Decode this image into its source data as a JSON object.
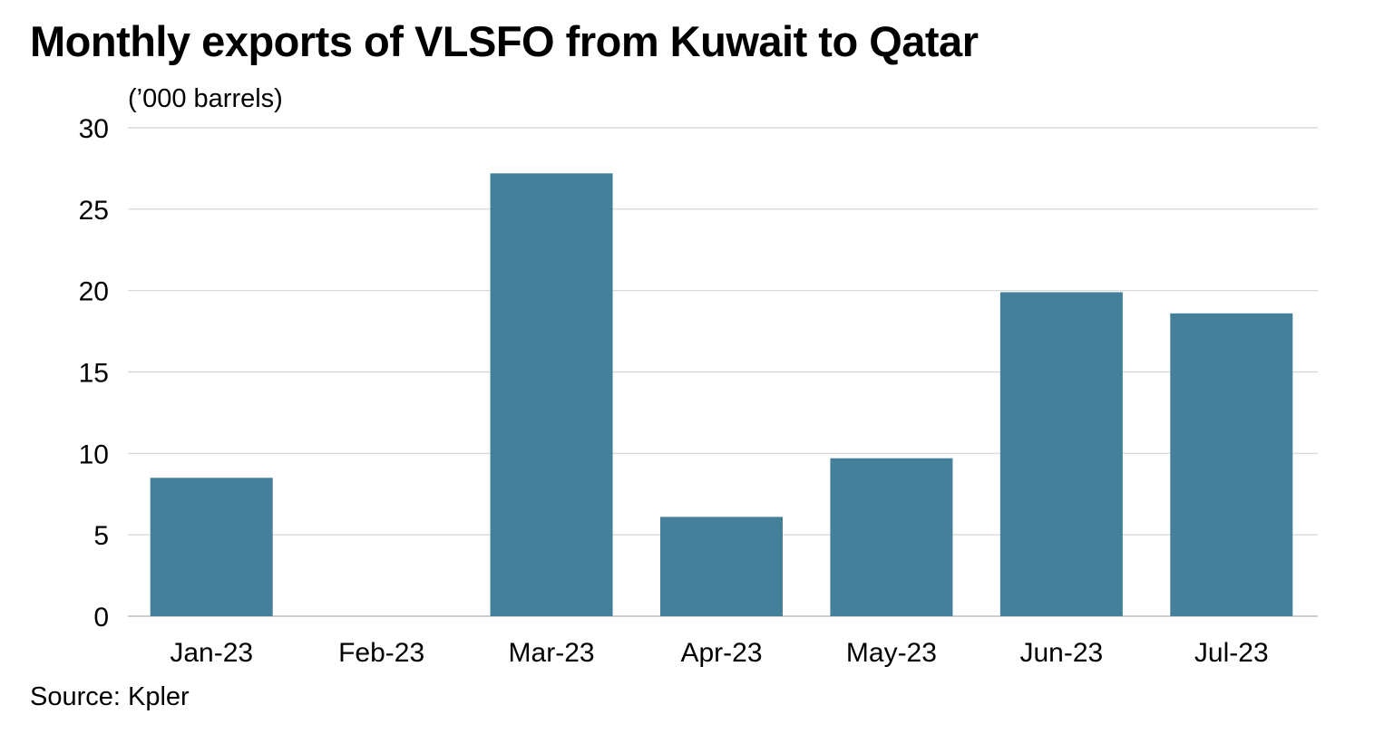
{
  "chart_data": {
    "type": "bar",
    "title": "Monthly exports of VLSFO from Kuwait to Qatar",
    "ylabel": "('000 barrels)",
    "ylabel_display": "(’000 barrels)",
    "xlabel": "",
    "categories": [
      "Jan-23",
      "Feb-23",
      "Mar-23",
      "Apr-23",
      "May-23",
      "Jun-23",
      "Jul-23"
    ],
    "values": [
      8.5,
      0,
      27.2,
      6.1,
      9.7,
      19.9,
      18.6
    ],
    "ylim": [
      0,
      30
    ],
    "yticks": [
      0,
      5,
      10,
      15,
      20,
      25,
      30
    ],
    "grid": true,
    "legend": "none",
    "bar_color": "#44809a",
    "source": "Source: Kpler"
  }
}
